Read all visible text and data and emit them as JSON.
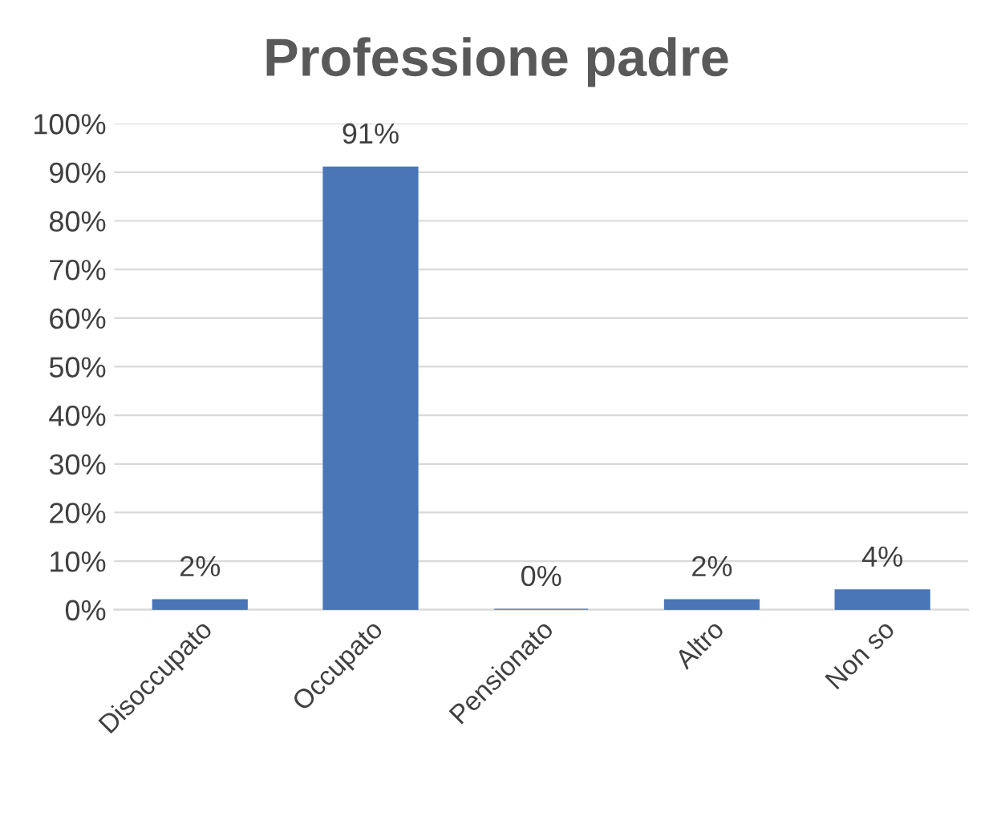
{
  "chart_data": {
    "type": "bar",
    "title": "Professione padre",
    "categories": [
      "Disoccupato",
      "Occupato",
      "Pensionato",
      "Altro",
      "Non so"
    ],
    "values": [
      2,
      91,
      0,
      2,
      4
    ],
    "value_labels": [
      "2%",
      "91%",
      "0%",
      "2%",
      "4%"
    ],
    "color": "#4a76b8",
    "ylim": [
      0,
      100
    ],
    "yticks": [
      {
        "value": 0,
        "label": "0%"
      },
      {
        "value": 10,
        "label": "10%"
      },
      {
        "value": 20,
        "label": "20%"
      },
      {
        "value": 30,
        "label": "30%"
      },
      {
        "value": 40,
        "label": "40%"
      },
      {
        "value": 50,
        "label": "50%"
      },
      {
        "value": 60,
        "label": "60%"
      },
      {
        "value": 70,
        "label": "70%"
      },
      {
        "value": 80,
        "label": "80%"
      },
      {
        "value": 90,
        "label": "90%"
      },
      {
        "value": 100,
        "label": "100%"
      }
    ],
    "grid": "y",
    "legend": false
  }
}
